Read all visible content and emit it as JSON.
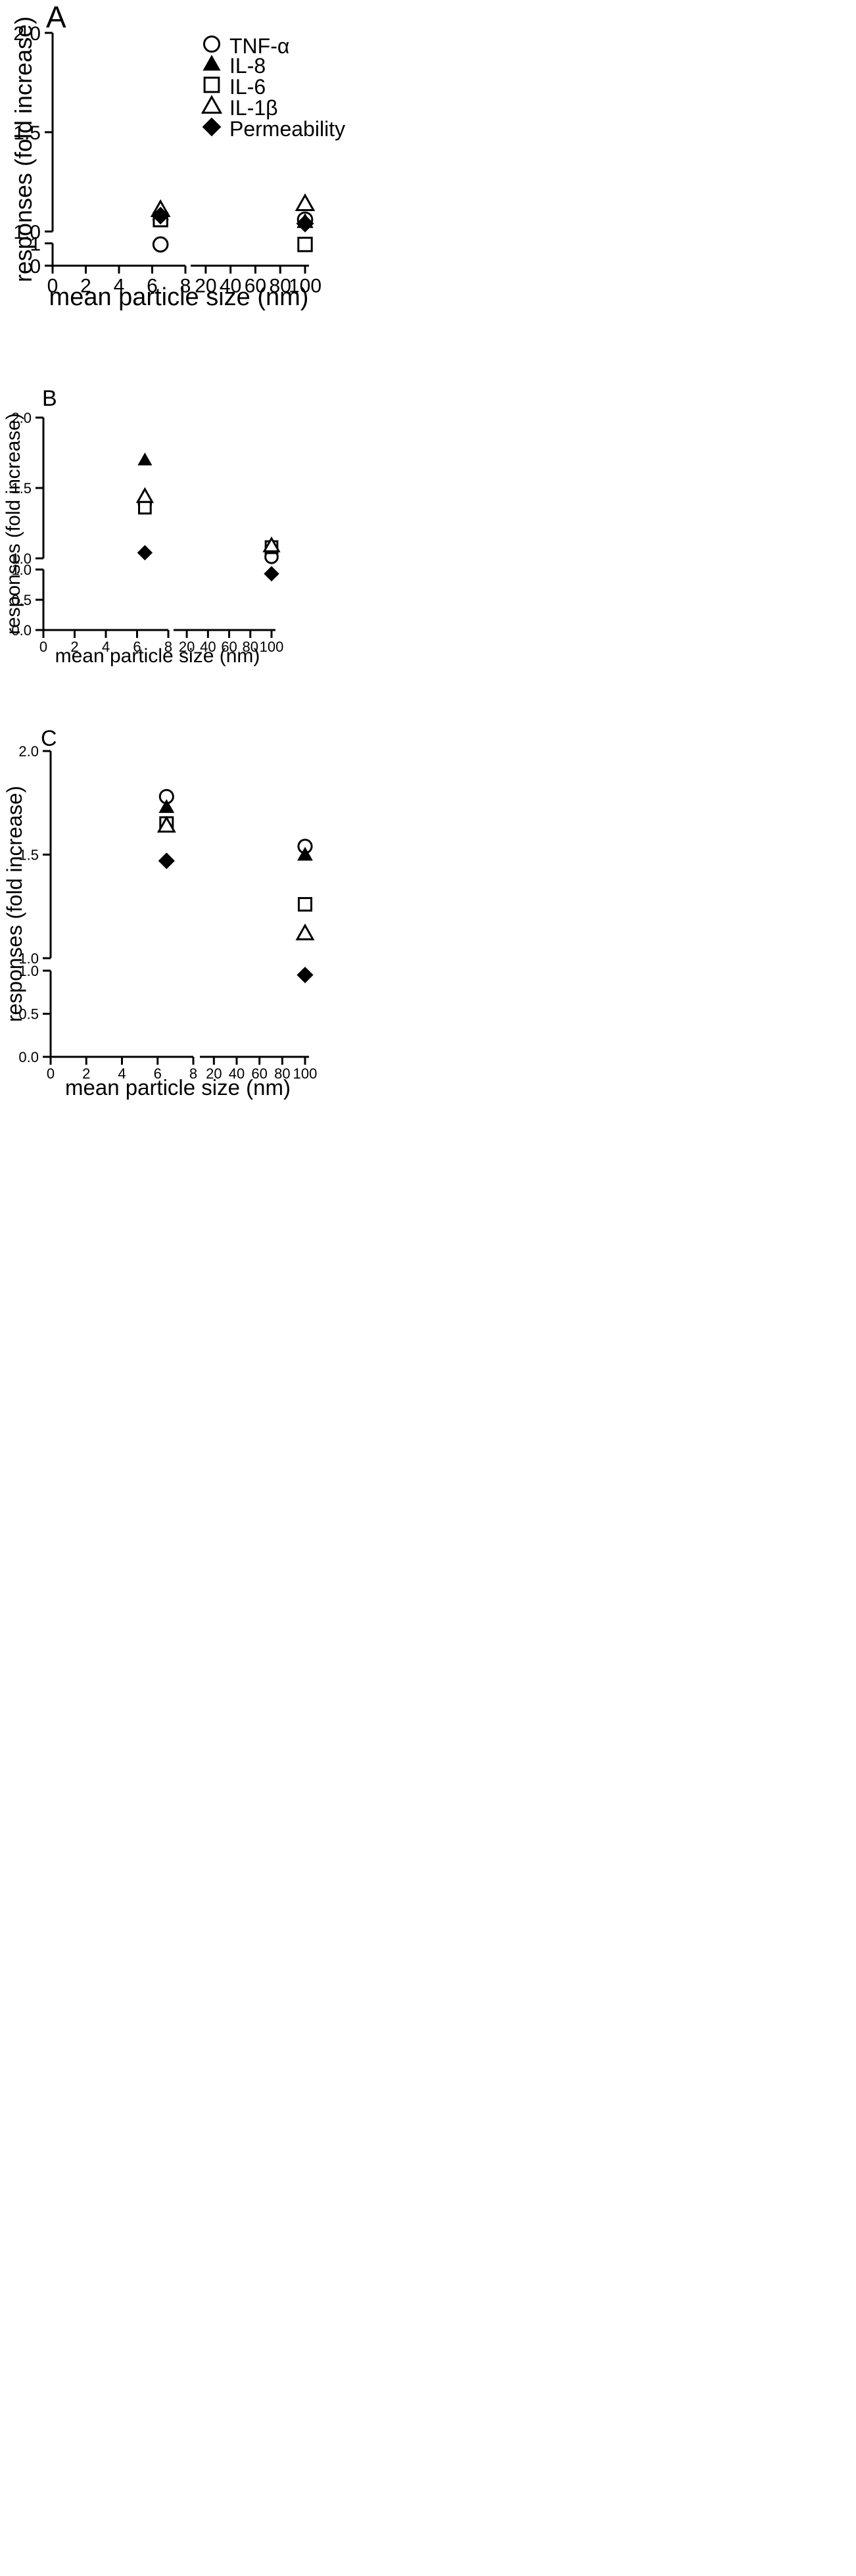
{
  "chart_data": [
    {
      "type": "scatter",
      "panel_label": "A",
      "xlabel": "mean particle size (nm)",
      "ylabel": "responses (fold increase)",
      "x_axis_break": {
        "left": {
          "range": [
            0,
            8
          ],
          "ticks": [
            "0",
            "2",
            "4",
            "6",
            "8"
          ]
        },
        "right": {
          "range": [
            10,
            100
          ],
          "ticks": [
            "20",
            "40",
            "60",
            "80",
            "100"
          ]
        }
      },
      "y_axis_break": {
        "lower": {
          "range": [
            0,
            1
          ],
          "ticks": [
            "0",
            "1"
          ]
        },
        "upper": {
          "range": [
            1.0,
            2.0
          ],
          "ticks": [
            "1.0",
            "1.5",
            "2.0"
          ]
        }
      },
      "legend": true,
      "series": [
        {
          "name": "TNF-α",
          "marker": "open-circle",
          "points": [
            [
              6.5,
              0.95
            ],
            [
              100,
              1.06
            ]
          ]
        },
        {
          "name": "IL-8",
          "marker": "filled-triangle",
          "points": [
            [
              6.5,
              1.09
            ],
            [
              100,
              1.05
            ]
          ]
        },
        {
          "name": "IL-6",
          "marker": "open-square",
          "points": [
            [
              6.5,
              1.06
            ],
            [
              100,
              0.95
            ]
          ]
        },
        {
          "name": "IL-1β",
          "marker": "open-triangle",
          "points": [
            [
              6.5,
              1.11
            ],
            [
              100,
              1.14
            ]
          ]
        },
        {
          "name": "Permeability",
          "marker": "filled-diamond",
          "points": [
            [
              6.5,
              1.08
            ],
            [
              100,
              1.04
            ]
          ]
        }
      ]
    },
    {
      "type": "scatter",
      "panel_label": "B",
      "xlabel": "mean particle size (nm)",
      "ylabel": "responses (fold increase)",
      "x_axis_break": {
        "left": {
          "range": [
            0,
            8
          ],
          "ticks": [
            "0",
            "2",
            "4",
            "6",
            "8"
          ]
        },
        "right": {
          "range": [
            10,
            100
          ],
          "ticks": [
            "20",
            "40",
            "60",
            "80",
            "100"
          ]
        }
      },
      "y_axis_break": {
        "lower": {
          "range": [
            0,
            1
          ],
          "ticks": [
            "0.0",
            "0.5",
            "1.0"
          ]
        },
        "upper": {
          "range": [
            1.0,
            2.0
          ],
          "ticks": [
            "1.0",
            "1.5",
            "2.0"
          ]
        }
      },
      "legend": false,
      "series": [
        {
          "name": "TNF-α",
          "marker": "open-circle",
          "points": [
            [
              6.5,
              1.39
            ],
            [
              100,
              1.01
            ]
          ]
        },
        {
          "name": "IL-8",
          "marker": "filled-triangle",
          "points": [
            [
              6.5,
              1.7
            ],
            [
              100,
              1.07
            ]
          ]
        },
        {
          "name": "IL-6",
          "marker": "open-square",
          "points": [
            [
              6.5,
              1.36
            ],
            [
              100,
              1.08
            ]
          ]
        },
        {
          "name": "IL-1β",
          "marker": "open-triangle",
          "points": [
            [
              6.5,
              1.44
            ],
            [
              100,
              1.09
            ]
          ]
        },
        {
          "name": "Permeability",
          "marker": "filled-diamond",
          "points": [
            [
              6.5,
              1.04
            ],
            [
              100,
              0.93
            ]
          ]
        }
      ]
    },
    {
      "type": "scatter",
      "panel_label": "C",
      "xlabel": "mean particle size (nm)",
      "ylabel": "responses (fold increase)",
      "x_axis_break": {
        "left": {
          "range": [
            0,
            8
          ],
          "ticks": [
            "0",
            "2",
            "4",
            "6",
            "8"
          ]
        },
        "right": {
          "range": [
            10,
            100
          ],
          "ticks": [
            "20",
            "40",
            "60",
            "80",
            "100"
          ]
        }
      },
      "y_axis_break": {
        "lower": {
          "range": [
            0,
            1
          ],
          "ticks": [
            "0.0",
            "0.5",
            "1.0"
          ]
        },
        "upper": {
          "range": [
            1.0,
            2.0
          ],
          "ticks": [
            "1.0",
            "1.5",
            "2.0"
          ]
        }
      },
      "legend": false,
      "series": [
        {
          "name": "TNF-α",
          "marker": "open-circle",
          "points": [
            [
              6.5,
              1.78
            ],
            [
              100,
              1.54
            ]
          ]
        },
        {
          "name": "IL-8",
          "marker": "filled-triangle",
          "points": [
            [
              6.5,
              1.73
            ],
            [
              100,
              1.5
            ]
          ]
        },
        {
          "name": "IL-6",
          "marker": "open-square",
          "points": [
            [
              6.5,
              1.65
            ],
            [
              100,
              1.26
            ]
          ]
        },
        {
          "name": "IL-1β",
          "marker": "open-triangle",
          "points": [
            [
              6.5,
              1.64
            ],
            [
              100,
              1.12
            ]
          ]
        },
        {
          "name": "Permeability",
          "marker": "filled-diamond",
          "points": [
            [
              6.5,
              1.47
            ],
            [
              100,
              0.95
            ]
          ]
        }
      ]
    }
  ]
}
